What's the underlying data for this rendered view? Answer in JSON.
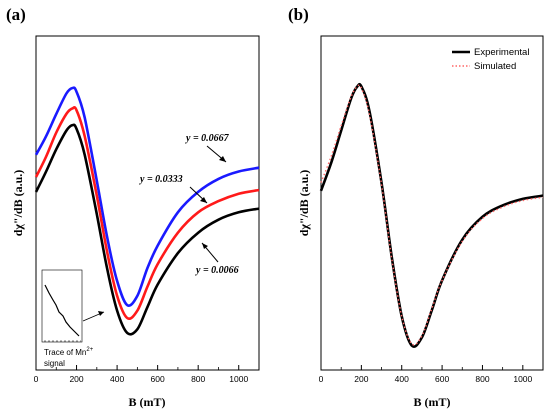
{
  "panels": {
    "a": {
      "tag": "(a)"
    },
    "b": {
      "tag": "(b)"
    }
  },
  "chart_data": [
    {
      "type": "line",
      "panel": "(a)",
      "xlabel": "B  (mT)",
      "ylabel": "dχ\"/dB  (a.u.)",
      "xlim": [
        0,
        1100
      ],
      "x_ticks": [
        0,
        200,
        400,
        600,
        800,
        1000
      ],
      "y_tick_labels": false,
      "x": [
        0,
        50,
        100,
        150,
        180,
        200,
        240,
        300,
        350,
        400,
        450,
        500,
        550,
        600,
        700,
        800,
        900,
        1000,
        1100
      ],
      "series": [
        {
          "name": "y = 0.0667",
          "color": "#1a1aff",
          "values": [
            0.66,
            0.76,
            0.88,
            0.99,
            1.02,
            1.0,
            0.86,
            0.52,
            0.22,
            -0.02,
            -0.15,
            -0.1,
            0.05,
            0.17,
            0.35,
            0.46,
            0.53,
            0.57,
            0.59
          ]
        },
        {
          "name": "y = 0.0333",
          "color": "#ff1a1a",
          "values": [
            0.54,
            0.65,
            0.78,
            0.88,
            0.91,
            0.9,
            0.76,
            0.44,
            0.14,
            -0.1,
            -0.22,
            -0.18,
            -0.05,
            0.07,
            0.24,
            0.35,
            0.41,
            0.45,
            0.47
          ]
        },
        {
          "name": "y = 0.0066",
          "color": "#000000",
          "values": [
            0.46,
            0.57,
            0.69,
            0.79,
            0.82,
            0.8,
            0.66,
            0.34,
            0.05,
            -0.18,
            -0.3,
            -0.28,
            -0.16,
            -0.04,
            0.13,
            0.24,
            0.31,
            0.35,
            0.37
          ]
        }
      ],
      "annotations": [
        "y = 0.0667",
        "y = 0.0333",
        "y = 0.0066"
      ],
      "inset": {
        "caption": "Trace of Mn",
        "superscript": "2+",
        "caption_line2": "signal"
      }
    },
    {
      "type": "line",
      "panel": "(b)",
      "xlabel": "B  (mT)",
      "ylabel": "dχ\"/dB  (a.u.)",
      "xlim": [
        0,
        1100
      ],
      "x_ticks": [
        0,
        200,
        400,
        600,
        800,
        1000
      ],
      "y_tick_labels": false,
      "legend_position": "top-right",
      "x": [
        0,
        50,
        100,
        150,
        180,
        200,
        240,
        300,
        350,
        400,
        450,
        500,
        550,
        600,
        700,
        800,
        900,
        1000,
        1100
      ],
      "series": [
        {
          "name": "Experimental",
          "color": "#000000",
          "style": "solid",
          "values": [
            0.35,
            0.52,
            0.72,
            0.92,
            0.99,
            0.99,
            0.84,
            0.4,
            -0.05,
            -0.42,
            -0.6,
            -0.55,
            -0.38,
            -0.2,
            0.05,
            0.19,
            0.26,
            0.3,
            0.32
          ]
        },
        {
          "name": "Simulated",
          "color": "#ff6666",
          "style": "dotted",
          "values": [
            0.4,
            0.56,
            0.75,
            0.93,
            0.99,
            0.98,
            0.82,
            0.39,
            -0.06,
            -0.42,
            -0.59,
            -0.54,
            -0.37,
            -0.2,
            0.04,
            0.18,
            0.25,
            0.29,
            0.31
          ]
        }
      ]
    }
  ]
}
